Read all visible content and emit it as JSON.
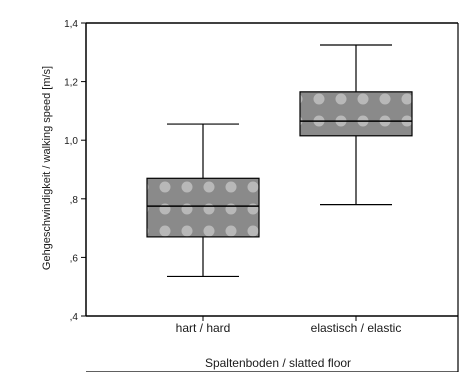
{
  "chart_data": {
    "type": "boxplot",
    "title": "",
    "xlabel": "Spaltenboden / slatted floor",
    "ylabel": "Gehgeschwindigkeit / walking speed [m/s]",
    "ylim": [
      0.4,
      1.4
    ],
    "yticks": [
      {
        "value": 0.4,
        "label": ",4"
      },
      {
        "value": 0.6,
        "label": ",6"
      },
      {
        "value": 0.8,
        "label": ",8"
      },
      {
        "value": 1.0,
        "label": "1,0"
      },
      {
        "value": 1.2,
        "label": "1,2"
      },
      {
        "value": 1.4,
        "label": "1,4"
      }
    ],
    "categories": [
      "hart / hard",
      "elastisch / elastic"
    ],
    "boxes": [
      {
        "category": "hart / hard",
        "min": 0.535,
        "q1": 0.67,
        "median": 0.775,
        "q3": 0.87,
        "max": 1.055
      },
      {
        "category": "elastisch / elastic",
        "min": 0.78,
        "q1": 1.015,
        "median": 1.065,
        "q3": 1.165,
        "max": 1.325
      }
    ],
    "grid": false,
    "legend": "none",
    "colors": {
      "box_fill": "#8a8a8a",
      "box_pattern": "#b8b8b8",
      "stroke": "#000000"
    }
  }
}
